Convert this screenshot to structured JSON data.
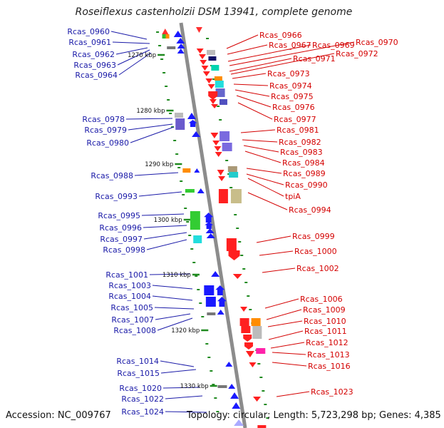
{
  "title": "Roseiflexus castenholzii DSM 13941, complete genome",
  "footer": {
    "accession": "Accession: NC_009767",
    "topology": "Topology: circular;",
    "length": "Length: 5,723,298 bp;",
    "genes": "Genes: 4,385"
  },
  "colors": {
    "left_label": "#1a1aa8",
    "right_label": "#d40000",
    "backbone": "#8c8c8c",
    "ticks": "#1f8a1f"
  },
  "kbp_ticks": [
    "1270 kbp",
    "1280 kbp",
    "1290 kbp",
    "1300 kbp",
    "1310 kbp",
    "1320 kbp",
    "1330 kbp"
  ],
  "left_genes": [
    "Rcas_0960",
    "Rcas_0961",
    "Rcas_0962",
    "Rcas_0963",
    "Rcas_0964",
    "Rcas_0978",
    "Rcas_0979",
    "Rcas_0980",
    "Rcas_0988",
    "Rcas_0993",
    "Rcas_0995",
    "Rcas_0996",
    "Rcas_0997",
    "Rcas_0998",
    "Rcas_1001",
    "Rcas_1003",
    "Rcas_1004",
    "Rcas_1005",
    "Rcas_1007",
    "Rcas_1008",
    "Rcas_1014",
    "Rcas_1015",
    "Rcas_1020",
    "Rcas_1022",
    "Rcas_1024"
  ],
  "right_genes": [
    "Rcas_0966",
    "Rcas_0967",
    "Rcas_0969",
    "Rcas_0970",
    "Rcas_0971",
    "Rcas_0972",
    "Rcas_0973",
    "Rcas_0974",
    "Rcas_0975",
    "Rcas_0976",
    "Rcas_0977",
    "Rcas_0981",
    "Rcas_0982",
    "Rcas_0983",
    "Rcas_0984",
    "Rcas_0989",
    "Rcas_0990",
    "tpiA",
    "Rcas_0994",
    "Rcas_0999",
    "Rcas_1000",
    "Rcas_1002",
    "Rcas_1006",
    "Rcas_1009",
    "Rcas_1010",
    "Rcas_1011",
    "Rcas_1012",
    "Rcas_1013",
    "Rcas_1016",
    "Rcas_1023"
  ]
}
